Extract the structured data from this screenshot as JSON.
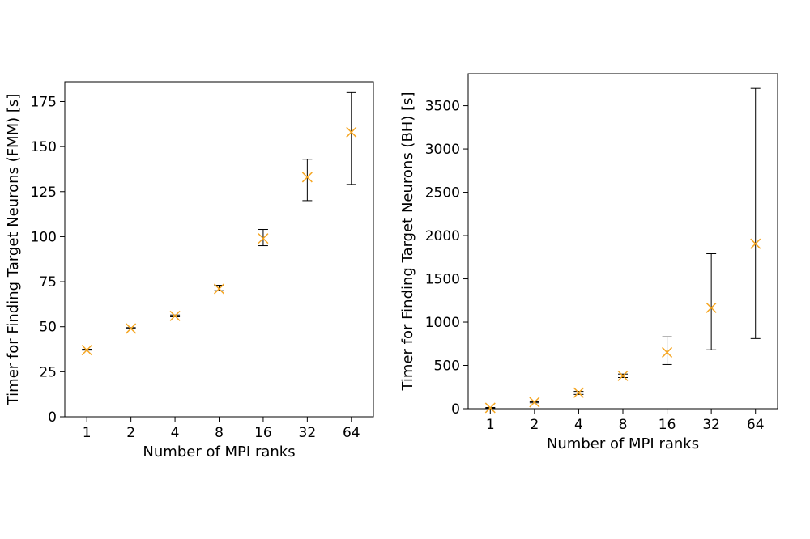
{
  "colors": {
    "marker": "#f5a623",
    "errorbar": "#000000",
    "axis": "#000000"
  },
  "chart_data": [
    {
      "type": "scatter",
      "title": "",
      "xlabel": "Number of MPI ranks",
      "ylabel": "Timer for Finding Target Neurons (FMM) [s]",
      "categories": [
        "1",
        "2",
        "4",
        "8",
        "16",
        "32",
        "64"
      ],
      "values": [
        37,
        49,
        56,
        71,
        99,
        133,
        158
      ],
      "error_low": [
        37,
        49,
        55.5,
        70,
        95,
        120,
        129
      ],
      "error_high": [
        37.5,
        49.5,
        56.5,
        73,
        104,
        143,
        180
      ],
      "ylim": [
        0,
        186
      ],
      "yticks": [
        0,
        25,
        50,
        75,
        100,
        125,
        150,
        175
      ],
      "marker": "x"
    },
    {
      "type": "scatter",
      "title": "",
      "xlabel": "Number of MPI ranks",
      "ylabel": "Timer for Finding Target Neurons (BH) [s]",
      "categories": [
        "1",
        "2",
        "4",
        "8",
        "16",
        "32",
        "64"
      ],
      "values": [
        10,
        75,
        185,
        380,
        650,
        1165,
        1905
      ],
      "error_low": [
        5,
        68,
        165,
        360,
        510,
        680,
        810
      ],
      "error_high": [
        14,
        80,
        200,
        400,
        830,
        1790,
        3700
      ],
      "ylim": [
        0,
        3870
      ],
      "yticks": [
        0,
        500,
        1000,
        1500,
        2000,
        2500,
        3000,
        3500
      ],
      "marker": "x"
    }
  ]
}
